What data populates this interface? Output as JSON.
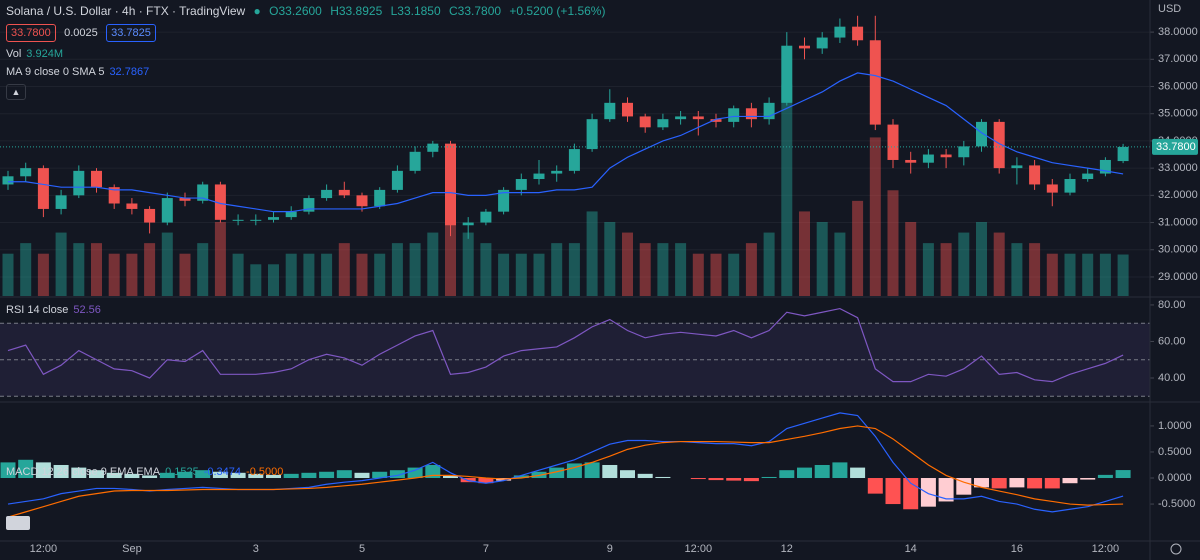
{
  "header": {
    "title": "Solana / U.S. Dollar · 4h · FTX · TradingView",
    "ohlc": [
      "O33.2600",
      "H33.8925",
      "L33.1850",
      "C33.7800",
      "+0.5200 (+1.56%)"
    ],
    "sell": "33.7800",
    "spread": "0.0025",
    "buy": "33.7825",
    "vol_name": "Vol",
    "vol_value": "3.924M",
    "ma_name": "MA 9 close 0 SMA 5",
    "ma_value": "32.7867",
    "rsi_name": "RSI 14 close",
    "rsi_value": "52.56",
    "macd_name": "MACD 12 26 close 9 EMA EMA",
    "macd_values": [
      "0.1525",
      "-0.3474",
      "-0.5000"
    ],
    "currency": "USD",
    "last_label": "33.7800"
  },
  "chart_data": [
    {
      "type": "candlestick",
      "ylim": [
        28.3,
        39.18
      ],
      "volume_ylim": [
        0,
        28
      ],
      "grid": true,
      "up_color": "#26a69a",
      "down_color": "#ef5350",
      "ma_color": "#2962ff",
      "yticks": [
        {
          "value": 29,
          "label": "29.0000"
        },
        {
          "value": 30,
          "label": "30.0000"
        },
        {
          "value": 31,
          "label": "31.0000"
        },
        {
          "value": 32,
          "label": "32.0000"
        },
        {
          "value": 33,
          "label": "33.0000"
        },
        {
          "value": 34,
          "label": "34.0000"
        },
        {
          "value": 35,
          "label": "35.0000"
        },
        {
          "value": 36,
          "label": "36.0000"
        },
        {
          "value": 37,
          "label": "37.0000"
        },
        {
          "value": 38,
          "label": "38.0000"
        }
      ],
      "categories": [
        null,
        null,
        "12:00",
        null,
        null,
        null,
        null,
        "Sep",
        null,
        null,
        null,
        null,
        null,
        null,
        "3",
        null,
        null,
        null,
        null,
        null,
        "5",
        null,
        null,
        null,
        null,
        null,
        null,
        "7",
        null,
        null,
        null,
        null,
        null,
        null,
        "9",
        null,
        null,
        null,
        null,
        "12:00",
        null,
        null,
        null,
        null,
        "12",
        null,
        null,
        null,
        null,
        null,
        null,
        "14",
        null,
        null,
        null,
        null,
        null,
        "16",
        null,
        null,
        null,
        null,
        "12:00",
        null
      ],
      "open": [
        32.4,
        32.7,
        33.0,
        31.5,
        32.0,
        32.9,
        32.3,
        31.7,
        31.5,
        31.0,
        31.9,
        31.8,
        32.4,
        31.1,
        31.1,
        31.1,
        31.2,
        31.4,
        31.9,
        32.2,
        32.0,
        31.6,
        32.2,
        32.9,
        33.6,
        33.9,
        30.9,
        31.0,
        31.4,
        32.2,
        32.6,
        32.8,
        32.9,
        33.7,
        34.8,
        35.4,
        34.9,
        34.5,
        34.8,
        34.9,
        34.8,
        34.7,
        35.2,
        34.8,
        35.4,
        37.5,
        37.4,
        37.8,
        38.2,
        37.7,
        34.6,
        33.3,
        33.2,
        33.5,
        33.4,
        33.8,
        34.7,
        33.0,
        33.1,
        32.4,
        32.1,
        32.6,
        32.8,
        33.26
      ],
      "high": [
        32.9,
        33.2,
        33.1,
        32.2,
        33.1,
        33.0,
        32.4,
        31.9,
        31.6,
        32.1,
        32.1,
        32.5,
        32.5,
        31.3,
        31.3,
        31.4,
        31.6,
        32.0,
        32.4,
        32.5,
        32.1,
        32.3,
        33.1,
        33.8,
        34.0,
        34.0,
        31.2,
        31.5,
        32.3,
        32.8,
        33.3,
        33.1,
        33.9,
        35.0,
        35.9,
        35.6,
        35.0,
        35.0,
        35.1,
        35.1,
        35.0,
        35.3,
        35.4,
        35.6,
        38.0,
        37.8,
        38.0,
        38.5,
        38.6,
        38.6,
        34.8,
        33.6,
        33.7,
        33.7,
        34.0,
        34.8,
        34.8,
        33.4,
        33.3,
        32.6,
        32.8,
        33.0,
        33.4,
        33.8925
      ],
      "low": [
        32.2,
        32.5,
        31.2,
        31.3,
        31.9,
        32.1,
        31.5,
        31.3,
        30.6,
        30.9,
        31.6,
        31.7,
        31.0,
        30.9,
        30.9,
        31.0,
        31.1,
        31.3,
        31.8,
        31.9,
        31.4,
        31.5,
        32.1,
        32.8,
        33.4,
        30.5,
        30.4,
        30.9,
        31.3,
        32.0,
        32.4,
        32.5,
        32.8,
        33.6,
        34.7,
        34.7,
        34.3,
        34.4,
        34.6,
        34.2,
        34.5,
        34.5,
        34.5,
        34.6,
        35.3,
        37.0,
        37.2,
        37.6,
        37.5,
        34.4,
        33.0,
        32.8,
        33.0,
        33.0,
        33.1,
        33.6,
        32.8,
        32.4,
        32.2,
        31.6,
        32.0,
        32.5,
        32.7,
        33.185
      ],
      "close": [
        32.7,
        33.0,
        31.5,
        32.0,
        32.9,
        32.3,
        31.7,
        31.5,
        31.0,
        31.9,
        31.8,
        32.4,
        31.1,
        31.1,
        31.1,
        31.2,
        31.4,
        31.9,
        32.2,
        32.0,
        31.6,
        32.2,
        32.9,
        33.6,
        33.9,
        30.9,
        31.0,
        31.4,
        32.2,
        32.6,
        32.8,
        32.9,
        33.7,
        34.8,
        35.4,
        34.9,
        34.5,
        34.8,
        34.9,
        34.8,
        34.7,
        35.2,
        34.8,
        35.4,
        37.5,
        37.4,
        37.8,
        38.2,
        37.7,
        34.6,
        33.3,
        33.2,
        33.5,
        33.4,
        33.8,
        34.7,
        33.0,
        33.1,
        32.4,
        32.1,
        32.6,
        32.8,
        33.3,
        33.78
      ],
      "volume": [
        4,
        5,
        4,
        6,
        5,
        5,
        4,
        4,
        5,
        6,
        4,
        5,
        7,
        4,
        3,
        3,
        4,
        4,
        4,
        5,
        4,
        4,
        5,
        5,
        6,
        12,
        6,
        5,
        4,
        4,
        4,
        5,
        5,
        8,
        7,
        6,
        5,
        5,
        5,
        4,
        4,
        4,
        5,
        6,
        20,
        8,
        7,
        6,
        9,
        15,
        10,
        7,
        5,
        5,
        6,
        7,
        6,
        5,
        5,
        4,
        4,
        4,
        4,
        3.924
      ],
      "ma": [
        32.5,
        32.5,
        32.4,
        32.3,
        32.3,
        32.3,
        32.2,
        32.2,
        32.1,
        32.0,
        31.9,
        31.9,
        31.7,
        31.6,
        31.5,
        31.4,
        31.4,
        31.5,
        31.5,
        31.5,
        31.5,
        31.6,
        31.7,
        31.9,
        32.1,
        32.1,
        32.0,
        32.0,
        32.1,
        32.1,
        32.1,
        32.2,
        32.2,
        32.3,
        33.0,
        33.4,
        33.7,
        34.0,
        34.2,
        34.5,
        34.8,
        34.9,
        34.9,
        34.9,
        35.2,
        35.5,
        35.8,
        36.2,
        36.5,
        36.4,
        36.2,
        35.9,
        35.6,
        35.3,
        34.8,
        34.3,
        33.9,
        33.6,
        33.4,
        33.2,
        33.1,
        33.0,
        32.9,
        32.7867
      ]
    },
    {
      "type": "line",
      "ylim": [
        27.4,
        83.8
      ],
      "color": "#7e57c2",
      "bands": [
        70,
        50,
        30
      ],
      "yticks": [
        {
          "value": 40,
          "label": "40.00"
        },
        {
          "value": 60,
          "label": "60.00"
        },
        {
          "value": 80,
          "label": "80.00"
        }
      ],
      "values": [
        55,
        58,
        42,
        47,
        55,
        50,
        45,
        44,
        40,
        50,
        49,
        55,
        42,
        42,
        42,
        43,
        45,
        50,
        53,
        51,
        47,
        53,
        58,
        63,
        66,
        42,
        43,
        46,
        52,
        55,
        56,
        57,
        62,
        68,
        72,
        66,
        62,
        64,
        65,
        64,
        63,
        66,
        62,
        66,
        76,
        74,
        76,
        78,
        73,
        45,
        38,
        38,
        42,
        41,
        45,
        52,
        42,
        43,
        39,
        38,
        42,
        45,
        48,
        52.56
      ]
    },
    {
      "type": "macd",
      "ylim": [
        -1.19,
        1.44
      ],
      "macd_color": "#2962ff",
      "signal_color": "#ff6d00",
      "yticks": [
        {
          "value": 1,
          "label": "1.0000"
        },
        {
          "value": 0.5,
          "label": "0.5000"
        },
        {
          "value": 0,
          "label": "0.0000"
        },
        {
          "value": -0.5,
          "label": "-0.5000"
        }
      ],
      "histogram": [
        0.3,
        0.35,
        0.3,
        0.25,
        0.2,
        0.15,
        0.1,
        0.08,
        0.05,
        0.1,
        0.12,
        0.15,
        0.12,
        0.1,
        0.08,
        0.06,
        0.08,
        0.1,
        0.12,
        0.15,
        0.1,
        0.12,
        0.15,
        0.2,
        0.25,
        0.05,
        -0.08,
        -0.1,
        -0.05,
        0.05,
        0.12,
        0.2,
        0.28,
        0.3,
        0.25,
        0.15,
        0.08,
        0.02,
        0.0,
        -0.02,
        -0.04,
        -0.05,
        -0.06,
        0.02,
        0.15,
        0.2,
        0.25,
        0.3,
        0.2,
        -0.3,
        -0.5,
        -0.6,
        -0.55,
        -0.45,
        -0.32,
        -0.18,
        -0.2,
        -0.18,
        -0.2,
        -0.2,
        -0.1,
        -0.03,
        0.06,
        0.1525
      ],
      "macd": [
        -0.5,
        -0.45,
        -0.4,
        -0.3,
        -0.25,
        -0.2,
        -0.2,
        -0.22,
        -0.25,
        -0.22,
        -0.2,
        -0.18,
        -0.2,
        -0.22,
        -0.22,
        -0.22,
        -0.2,
        -0.18,
        -0.12,
        -0.08,
        -0.05,
        0.0,
        0.05,
        0.15,
        0.3,
        0.1,
        -0.05,
        -0.1,
        -0.05,
        0.05,
        0.15,
        0.25,
        0.35,
        0.5,
        0.65,
        0.72,
        0.72,
        0.7,
        0.7,
        0.68,
        0.66,
        0.66,
        0.62,
        0.7,
        0.95,
        1.05,
        1.15,
        1.25,
        1.2,
        0.8,
        0.3,
        -0.1,
        -0.3,
        -0.4,
        -0.4,
        -0.35,
        -0.45,
        -0.5,
        -0.6,
        -0.65,
        -0.6,
        -0.55,
        -0.45,
        -0.3474
      ],
      "signal": [
        -0.75,
        -0.65,
        -0.55,
        -0.45,
        -0.35,
        -0.3,
        -0.25,
        -0.24,
        -0.24,
        -0.24,
        -0.23,
        -0.22,
        -0.22,
        -0.22,
        -0.22,
        -0.22,
        -0.21,
        -0.2,
        -0.18,
        -0.15,
        -0.12,
        -0.08,
        -0.04,
        0.0,
        0.05,
        0.05,
        0.03,
        0.0,
        -0.02,
        0.0,
        0.05,
        0.12,
        0.2,
        0.3,
        0.42,
        0.55,
        0.63,
        0.68,
        0.7,
        0.7,
        0.7,
        0.69,
        0.68,
        0.68,
        0.74,
        0.8,
        0.87,
        0.95,
        1.0,
        0.95,
        0.75,
        0.5,
        0.25,
        0.05,
        -0.08,
        -0.18,
        -0.25,
        -0.32,
        -0.4,
        -0.45,
        -0.5,
        -0.52,
        -0.51,
        -0.5
      ]
    }
  ]
}
